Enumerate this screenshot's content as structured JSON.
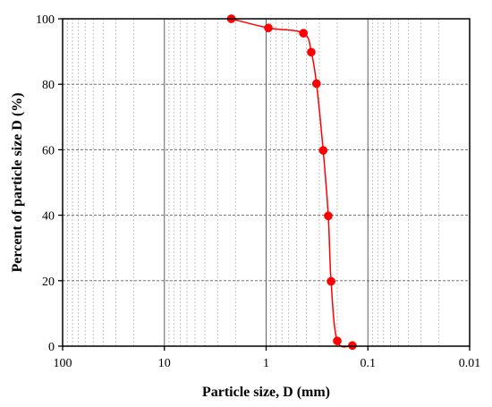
{
  "chart_data": {
    "type": "scatter",
    "xlabel": "Particle size, D (mm)",
    "ylabel": "Percent of particle size D (%)",
    "x_scale": "log",
    "x_reversed": true,
    "xlim": [
      100,
      0.01
    ],
    "ylim": [
      0,
      100
    ],
    "x_ticks": [
      {
        "value": 100,
        "label": "100"
      },
      {
        "value": 10,
        "label": "10"
      },
      {
        "value": 1,
        "label": "1"
      },
      {
        "value": 0.1,
        "label": "0.1"
      },
      {
        "value": 0.01,
        "label": "0.01"
      }
    ],
    "y_ticks": [
      {
        "value": 0,
        "label": "0"
      },
      {
        "value": 20,
        "label": "20"
      },
      {
        "value": 40,
        "label": "40"
      },
      {
        "value": 60,
        "label": "60"
      },
      {
        "value": 80,
        "label": "80"
      },
      {
        "value": 100,
        "label": "100"
      }
    ],
    "grid": true,
    "series": [
      {
        "color": "#ff0000",
        "line": "smooth",
        "marker": "circle",
        "x": [
          2.2,
          0.95,
          0.43,
          0.36,
          0.32,
          0.275,
          0.245,
          0.23,
          0.2,
          0.142
        ],
        "y": [
          100,
          97.2,
          95.6,
          89.8,
          80.2,
          59.8,
          39.8,
          19.8,
          1.6,
          0.2
        ]
      }
    ]
  }
}
